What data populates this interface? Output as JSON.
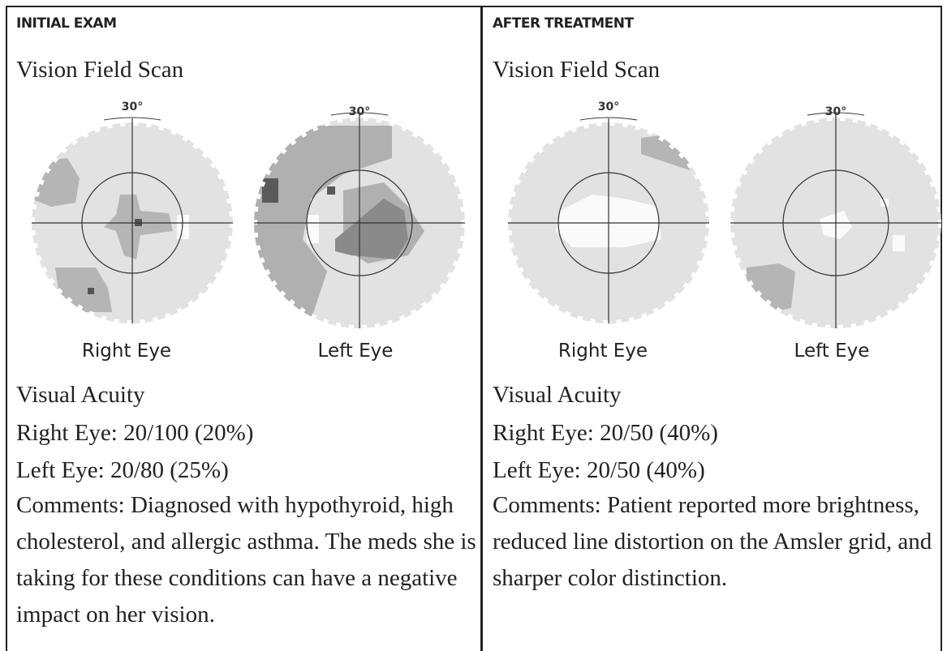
{
  "panels": [
    {
      "header": "INITIAL EXAM",
      "scan_title": "Vision Field Scan",
      "eyes": [
        {
          "degree_label": "30°",
          "label": "Right Eye"
        },
        {
          "degree_label": "30°",
          "label": "Left Eye"
        }
      ],
      "acuity_title": "Visual Acuity",
      "right_eye": "Right Eye: 20/100 (20%)",
      "left_eye": "Left Eye: 20/80 (25%)",
      "comments": "Comments: Diagnosed with hypothyroid, high cholesterol, and allergic asthma. The meds she is taking for these conditions can have a negative impact on her vision."
    },
    {
      "header": "AFTER TREATMENT",
      "scan_title": "Vision Field Scan",
      "eyes": [
        {
          "degree_label": "30°",
          "label": "Right Eye"
        },
        {
          "degree_label": "30°",
          "label": "Left Eye"
        }
      ],
      "acuity_title": "Visual Acuity",
      "right_eye": "Right Eye: 20/50 (40%)",
      "left_eye": "Left Eye: 20/50 (40%)",
      "comments": "Comments: Patient reported more brightness, reduced line distortion on the Amsler grid, and sharper color distinction."
    }
  ]
}
